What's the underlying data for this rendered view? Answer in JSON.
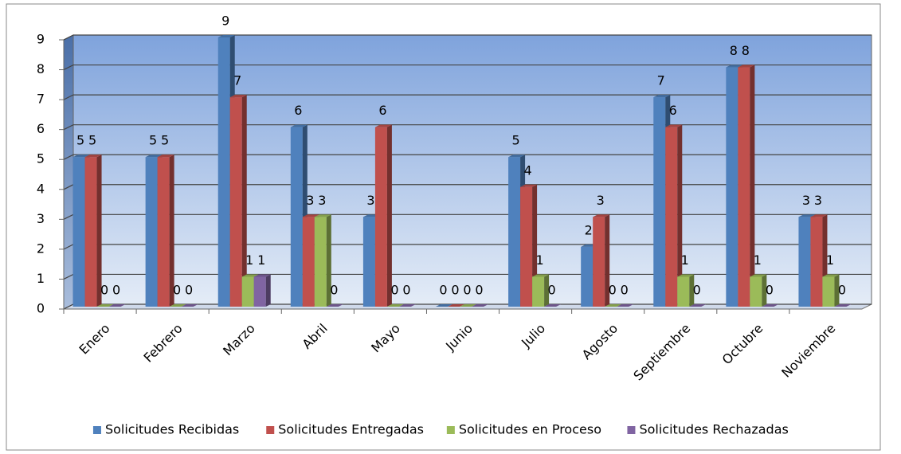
{
  "chart_data": {
    "type": "bar3d",
    "categories": [
      "Enero",
      "Febrero",
      "Marzo",
      "Abril",
      "Mayo",
      "Junio",
      "Julio",
      "Agosto",
      "Septiembre",
      "Octubre",
      "Noviembre"
    ],
    "series": [
      {
        "name": "Solicitudes Recibidas",
        "color": "#4f81bd",
        "values": [
          5,
          5,
          9,
          6,
          3,
          0,
          5,
          2,
          7,
          8,
          3
        ]
      },
      {
        "name": "Solicitudes Entregadas",
        "color": "#c0504d",
        "values": [
          5,
          5,
          7,
          3,
          6,
          0,
          4,
          3,
          6,
          8,
          3
        ]
      },
      {
        "name": "Solicitudes en Proceso",
        "color": "#9bbb59",
        "values": [
          0,
          0,
          1,
          3,
          0,
          0,
          1,
          0,
          1,
          1,
          1
        ]
      },
      {
        "name": "Solicitudes Rechazadas",
        "color": "#8064a2",
        "values": [
          0,
          0,
          1,
          0,
          0,
          0,
          0,
          0,
          0,
          0,
          0
        ]
      }
    ],
    "ylim": [
      0,
      9
    ],
    "yticks": [
      0,
      1,
      2,
      3,
      4,
      5,
      6,
      7,
      8,
      9
    ],
    "grid": true,
    "legend": "bottom"
  }
}
